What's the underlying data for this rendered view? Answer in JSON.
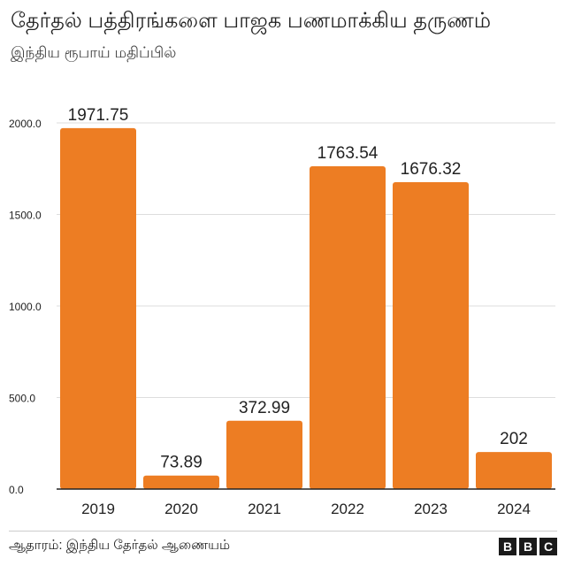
{
  "title": "தேர்தல் பத்திரங்களை பாஜக பணமாக்கிய தருணம்",
  "subtitle": "இந்திய ரூபாய் மதிப்பில்",
  "source": "ஆதாரம்: இந்திய தேர்தல் ஆணையம்",
  "logo": [
    "B",
    "B",
    "C"
  ],
  "colors": {
    "bar": "#ED7D23",
    "grid": "#dddddd",
    "axis": "#222222"
  },
  "chart_data": {
    "type": "bar",
    "title": "தேர்தல் பத்திரங்களை பாஜக பணமாக்கிய தருணம்",
    "subtitle": "இந்திய ரூபாய் மதிப்பில்",
    "categories": [
      "2019",
      "2020",
      "2021",
      "2022",
      "2023",
      "2024"
    ],
    "values": [
      1971.75,
      73.89,
      372.99,
      1763.54,
      1676.32,
      202
    ],
    "value_labels": [
      "1971.75",
      "73.89",
      "372.99",
      "1763.54",
      "1676.32",
      "202"
    ],
    "yticks": [
      "0.0",
      "500.0",
      "1000.0",
      "1500.0",
      "2000.0"
    ],
    "ytick_values": [
      0,
      500,
      1000,
      1500,
      2000
    ],
    "ylim": [
      0,
      2000
    ],
    "xlabel": "",
    "ylabel": "",
    "grid": true
  }
}
